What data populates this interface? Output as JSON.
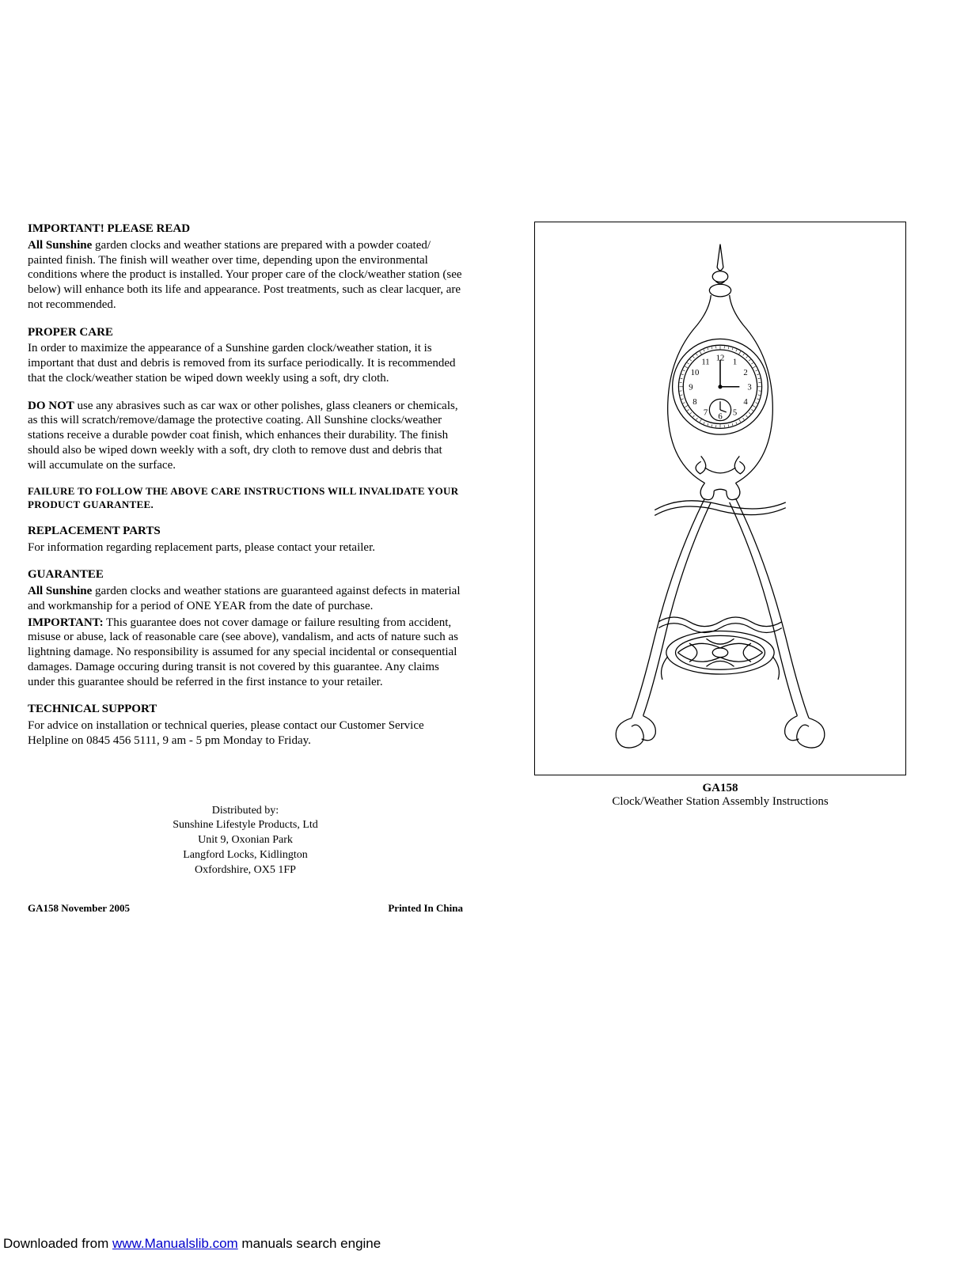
{
  "left": {
    "h1": "IMPORTANT! PLEASE READ",
    "p1a": "All Sunshine",
    "p1b": " garden clocks and weather stations are prepared with a powder coated/ painted finish.  The finish will weather over time, depending upon the environmental conditions where the product is installed. Your proper care of the clock/weather station (see below) will enhance both its life and appearance. Post treatments, such as clear lacquer, are not recommended.",
    "h2": "PROPER CARE",
    "p2": "In order to maximize the appearance of a Sunshine garden clock/weather station, it is important that dust and debris is removed from its surface periodically. It is recommended that the clock/weather station be wiped down weekly using a soft, dry cloth.",
    "p3a": "DO NOT",
    "p3b": " use any abrasives such as car wax or other polishes, glass cleaners or chemicals,  as this will scratch/remove/damage the protective coating. All Sunshine clocks/weather stations receive a durable powder coat finish, which enhances their durability. The finish should also be wiped down weekly with a soft, dry cloth to remove dust and debris that will accumulate on the surface.",
    "warn": "FAILURE TO FOLLOW THE ABOVE CARE INSTRUCTIONS WILL INVALIDATE YOUR PRODUCT GUARANTEE.",
    "h3": "REPLACEMENT PARTS",
    "p4": "For information regarding replacement parts, please contact your retailer.",
    "h4": "GUARANTEE",
    "p5a": "All Sunshine",
    "p5b": " garden clocks and weather stations are guaranteed against defects in material and workmanship for a period of ONE YEAR from the date of purchase.",
    "p6a": "IMPORTANT:",
    "p6b": " This guarantee does not cover damage or failure resulting from accident, misuse or abuse, lack of reasonable care (see above), vandalism, and acts of nature such as lightning damage.  No responsibility is assumed for any special incidental or consequential damages.  Damage occuring during transit is not covered by this guarantee.  Any claims under this guarantee should be referred in the first instance to your retailer.",
    "h5": "TECHNICAL SUPPORT",
    "p7": "For advice on installation or technical queries, please contact our Customer Service Helpline on 0845 456 5111, 9 am - 5 pm Monday to Friday.",
    "dist1": "Distributed by:",
    "dist2": "Sunshine Lifestyle Products, Ltd",
    "dist3": "Unit 9, Oxonian Park",
    "dist4": "Langford Locks, Kidlington",
    "dist5": "Oxfordshire, OX5 1FP",
    "footL": "GA158 November 2005",
    "footR": "Printed In China"
  },
  "right": {
    "model": "GA158",
    "caption": "Clock/Weather Station Assembly Instructions"
  },
  "illustration": {
    "stroke": "#000000",
    "strokeWidth": 1.2,
    "clockNumbers": [
      "12",
      "1",
      "2",
      "3",
      "4",
      "5",
      "6",
      "7",
      "8",
      "9",
      "10",
      "11"
    ]
  },
  "footerLink": {
    "prefix": "Downloaded from ",
    "linkText": "www.Manualslib.com",
    "linkHref": "http://www.manualslib.com/",
    "suffix": " manuals search engine"
  }
}
